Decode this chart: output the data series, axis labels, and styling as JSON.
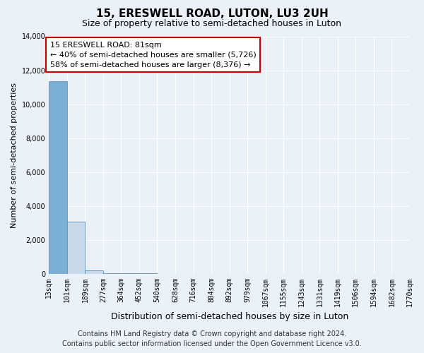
{
  "title": "15, ERESWELL ROAD, LUTON, LU3 2UH",
  "subtitle": "Size of property relative to semi-detached houses in Luton",
  "xlabel": "Distribution of semi-detached houses by size in Luton",
  "ylabel": "Number of semi-detached properties",
  "footer_line1": "Contains HM Land Registry data © Crown copyright and database right 2024.",
  "footer_line2": "Contains public sector information licensed under the Open Government Licence v3.0.",
  "annotation_line1": "15 ERESWELL ROAD: 81sqm",
  "annotation_line2": "← 40% of semi-detached houses are smaller (5,726)",
  "annotation_line3": "58% of semi-detached houses are larger (8,376) →",
  "property_sqm": 81,
  "bin_edges": [
    13,
    101,
    189,
    277,
    364,
    452,
    540,
    628,
    716,
    804,
    892,
    979,
    1067,
    1155,
    1243,
    1331,
    1419,
    1506,
    1594,
    1682,
    1770
  ],
  "bar_heights": [
    11350,
    3050,
    200,
    30,
    15,
    8,
    5,
    4,
    3,
    2,
    2,
    1,
    1,
    1,
    1,
    1,
    1,
    1,
    1,
    1
  ],
  "bar_color_normal": "#c8d9ea",
  "bar_color_highlight": "#7bafd4",
  "bar_edge_color": "#6090b8",
  "ylim": [
    0,
    14000
  ],
  "yticks": [
    0,
    2000,
    4000,
    6000,
    8000,
    10000,
    12000,
    14000
  ],
  "background_color": "#eaf1f8",
  "plot_bg_color": "#eaf1f8",
  "grid_color": "#ffffff",
  "annotation_box_facecolor": "#ffffff",
  "annotation_box_edgecolor": "#cc0000",
  "title_fontsize": 11,
  "subtitle_fontsize": 9,
  "ylabel_fontsize": 8,
  "xlabel_fontsize": 9,
  "tick_fontsize": 7,
  "annotation_fontsize": 8,
  "footer_fontsize": 7
}
